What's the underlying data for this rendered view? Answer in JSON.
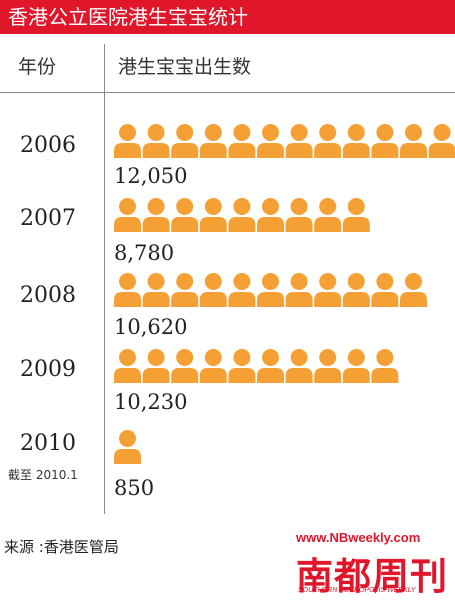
{
  "title": "香港公立医院港生宝宝统计",
  "headers": {
    "year": "年份",
    "count": "港生宝宝出生数"
  },
  "source": "来源 :香港医管局",
  "footer": {
    "url": "www.NBweekly.com",
    "brand": "南都周刊",
    "brand_en": "SOUTHERN METROPOLIS WEEKLY"
  },
  "icon": "person-icon",
  "colors": {
    "icon": "#f5a035",
    "title_bg": "#e0162b",
    "brand": "#e0162b"
  },
  "chart_data": {
    "type": "pictogram",
    "title": "香港公立医院港生宝宝统计",
    "xlabel": "港生宝宝出生数",
    "ylabel": "年份",
    "categories": [
      "2006",
      "2007",
      "2008",
      "2009",
      "2010"
    ],
    "category_notes": [
      "",
      "",
      "",
      "",
      "截至 2010.1"
    ],
    "values": [
      12050,
      8780,
      10620,
      10230,
      850
    ],
    "value_labels": [
      "12,050",
      "8,780",
      "10,620",
      "10,230",
      "850"
    ],
    "icon_counts": [
      12,
      9,
      11,
      10,
      1
    ]
  }
}
